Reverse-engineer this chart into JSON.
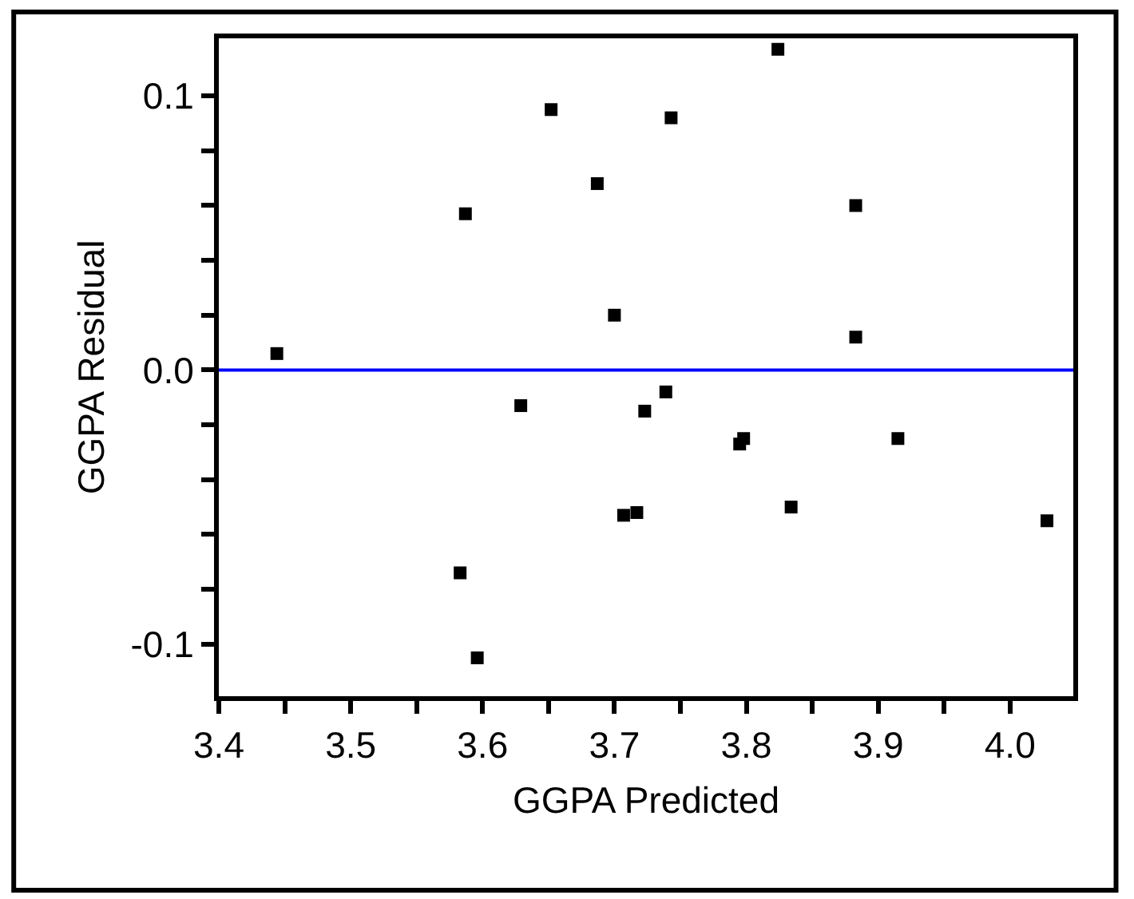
{
  "chart_data": {
    "type": "scatter",
    "xlabel": "GGPA Predicted",
    "ylabel": "GGPA Residual",
    "x": [
      3.444,
      3.587,
      3.629,
      3.652,
      3.687,
      3.7,
      3.723,
      3.739,
      3.743,
      3.824,
      3.883,
      3.883,
      3.795,
      3.798,
      3.915,
      3.707,
      3.717,
      3.834,
      4.028,
      3.583,
      3.596
    ],
    "series": [
      {
        "color": "#000000",
        "values": [
          0.006,
          0.057,
          -0.013,
          0.095,
          0.068,
          0.02,
          -0.015,
          -0.008,
          0.092,
          0.117,
          0.06,
          0.012,
          -0.027,
          -0.025,
          -0.025,
          -0.053,
          -0.052,
          -0.05,
          -0.055,
          -0.074,
          -0.105
        ]
      }
    ],
    "marker": "square",
    "grid": false,
    "legend": false,
    "xlim": [
      3.4,
      4.048
    ],
    "ylim": [
      -0.119,
      0.121
    ],
    "xticks": [
      {
        "value": 3.4,
        "label": "3.4"
      },
      {
        "value": 3.45,
        "label": null
      },
      {
        "value": 3.5,
        "label": "3.5"
      },
      {
        "value": 3.55,
        "label": null
      },
      {
        "value": 3.6,
        "label": "3.6"
      },
      {
        "value": 3.65,
        "label": null
      },
      {
        "value": 3.7,
        "label": "3.7"
      },
      {
        "value": 3.75,
        "label": null
      },
      {
        "value": 3.8,
        "label": "3.8"
      },
      {
        "value": 3.85,
        "label": null
      },
      {
        "value": 3.9,
        "label": "3.9"
      },
      {
        "value": 3.95,
        "label": null
      },
      {
        "value": 4.0,
        "label": "4.0"
      }
    ],
    "yticks": [
      {
        "value": -0.1,
        "label": "-0.1"
      },
      {
        "value": -0.08,
        "label": null
      },
      {
        "value": -0.06,
        "label": null
      },
      {
        "value": -0.04,
        "label": null
      },
      {
        "value": -0.02,
        "label": null
      },
      {
        "value": 0.0,
        "label": "0.0"
      },
      {
        "value": 0.02,
        "label": null
      },
      {
        "value": 0.04,
        "label": null
      },
      {
        "value": 0.06,
        "label": null
      },
      {
        "value": 0.08,
        "label": null
      },
      {
        "value": 0.1,
        "label": "0.1"
      }
    ],
    "ref_lines": [
      {
        "axis": "y",
        "value": 0.0,
        "color": "#0000ff",
        "line_style": "solid"
      }
    ]
  }
}
